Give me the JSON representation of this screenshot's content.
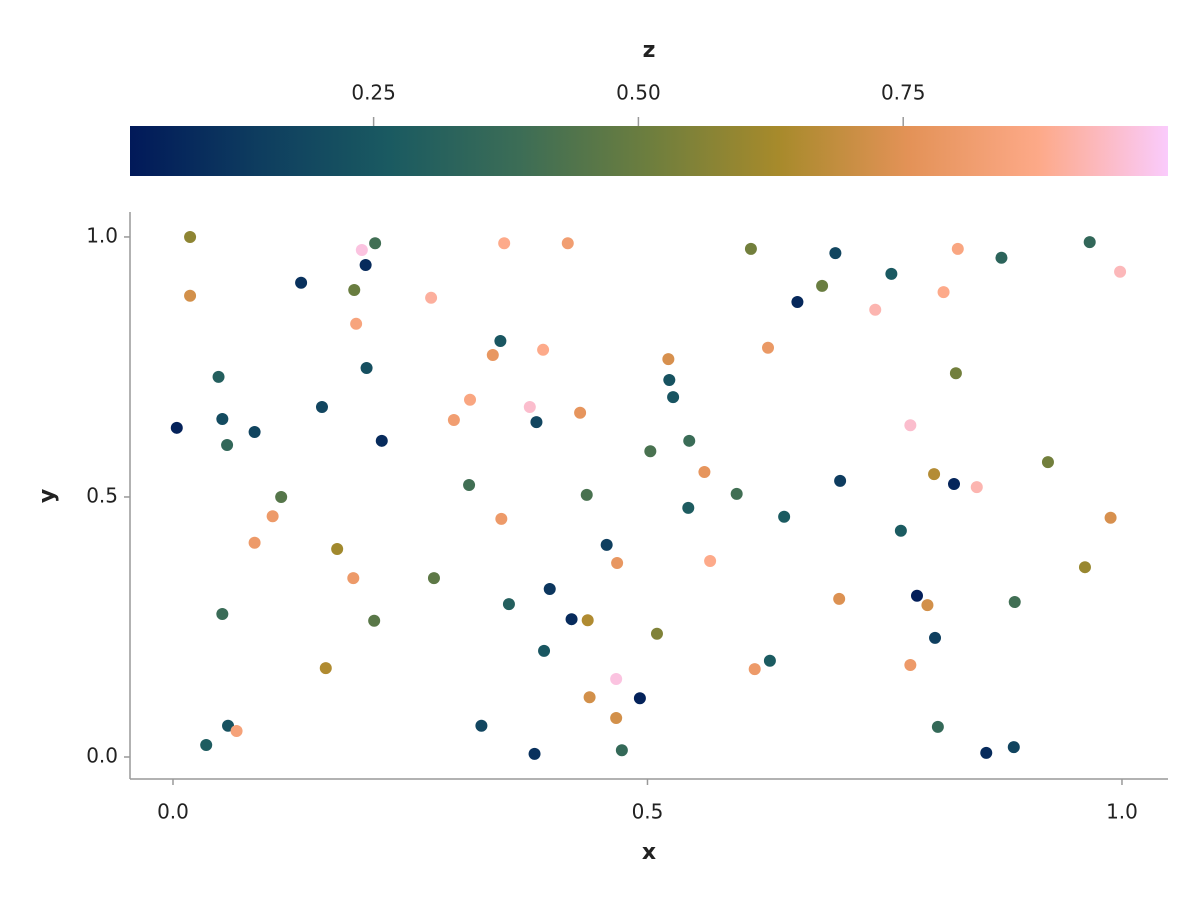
{
  "chart_data": {
    "type": "scatter",
    "xlabel": "x",
    "ylabel": "y",
    "colorbar_label": "z",
    "xlim": [
      -0.0453,
      1.0485
    ],
    "ylim": [
      -0.0423,
      1.048
    ],
    "clim": [
      0.02,
      1.0
    ],
    "xticks": [
      {
        "value": 0,
        "label": "0.0"
      },
      0.5,
      {
        "value": 1,
        "label": "1.0"
      }
    ],
    "yticks": [
      {
        "value": 0,
        "label": "0.0"
      },
      0.5,
      {
        "value": 1,
        "label": "1.0"
      }
    ],
    "cticks": [
      0.25,
      {
        "value": 0.5,
        "label": "0.50"
      },
      0.75
    ],
    "colormap": [
      "#011959",
      "#0e3d5f",
      "#1a5a61",
      "#3c6d56",
      "#6d7e3e",
      "#a78a2b",
      "#e39257",
      "#fda988",
      "#facbfc"
    ],
    "x": [
      0.018,
      0.018,
      0.004,
      0.048,
      0.052,
      0.057,
      0.086,
      0.052,
      0.058,
      0.035,
      0.067,
      0.086,
      0.105,
      0.114,
      0.135,
      0.157,
      0.161,
      0.173,
      0.19,
      0.191,
      0.193,
      0.199,
      0.203,
      0.213,
      0.204,
      0.212,
      0.22,
      0.272,
      0.275,
      0.296,
      0.313,
      0.312,
      0.325,
      0.337,
      0.345,
      0.346,
      0.349,
      0.354,
      0.376,
      0.383,
      0.381,
      0.39,
      0.391,
      0.397,
      0.416,
      0.42,
      0.429,
      0.436,
      0.437,
      0.439,
      0.457,
      0.467,
      0.468,
      0.467,
      0.473,
      0.492,
      0.503,
      0.51,
      0.522,
      0.523,
      0.527,
      0.544,
      0.543,
      0.56,
      0.566,
      0.594,
      0.609,
      0.613,
      0.627,
      0.629,
      0.644,
      0.658,
      0.684,
      0.698,
      0.702,
      0.703,
      0.74,
      0.757,
      0.767,
      0.777,
      0.777,
      0.784,
      0.795,
      0.802,
      0.803,
      0.806,
      0.812,
      0.823,
      0.825,
      0.827,
      0.847,
      0.857,
      0.873,
      0.886,
      0.887,
      0.922,
      0.961,
      0.966,
      0.988,
      0.998
    ],
    "y": [
      1.0,
      0.887,
      0.633,
      0.731,
      0.65,
      0.6,
      0.625,
      0.275,
      0.06,
      0.023,
      0.05,
      0.412,
      0.463,
      0.5,
      0.912,
      0.673,
      0.171,
      0.4,
      0.344,
      0.898,
      0.833,
      0.975,
      0.946,
      0.988,
      0.748,
      0.262,
      0.608,
      0.883,
      0.344,
      0.648,
      0.687,
      0.523,
      0.06,
      0.773,
      0.8,
      0.458,
      0.988,
      0.294,
      0.673,
      0.644,
      0.006,
      0.783,
      0.204,
      0.323,
      0.988,
      0.265,
      0.662,
      0.504,
      0.263,
      0.115,
      0.408,
      0.15,
      0.373,
      0.075,
      0.013,
      0.113,
      0.588,
      0.237,
      0.765,
      0.725,
      0.692,
      0.608,
      0.479,
      0.548,
      0.377,
      0.506,
      0.977,
      0.169,
      0.787,
      0.185,
      0.462,
      0.875,
      0.906,
      0.969,
      0.304,
      0.531,
      0.86,
      0.929,
      0.435,
      0.177,
      0.638,
      0.31,
      0.292,
      0.544,
      0.229,
      0.058,
      0.894,
      0.525,
      0.738,
      0.977,
      0.519,
      0.008,
      0.96,
      0.019,
      0.298,
      0.567,
      0.365,
      0.99,
      0.46,
      0.933
    ],
    "z": [
      0.58,
      0.72,
      0.05,
      0.3,
      0.2,
      0.35,
      0.17,
      0.38,
      0.23,
      0.28,
      0.84,
      0.8,
      0.8,
      0.45,
      0.1,
      0.18,
      0.65,
      0.62,
      0.8,
      0.5,
      0.85,
      0.97,
      0.08,
      0.4,
      0.22,
      0.46,
      0.08,
      0.9,
      0.47,
      0.82,
      0.86,
      0.4,
      0.18,
      0.78,
      0.25,
      0.8,
      0.88,
      0.3,
      0.95,
      0.18,
      0.1,
      0.88,
      0.25,
      0.12,
      0.82,
      0.08,
      0.77,
      0.42,
      0.65,
      0.72,
      0.15,
      0.97,
      0.78,
      0.72,
      0.36,
      0.05,
      0.42,
      0.55,
      0.73,
      0.23,
      0.24,
      0.38,
      0.28,
      0.77,
      0.88,
      0.4,
      0.52,
      0.8,
      0.79,
      0.27,
      0.27,
      0.07,
      0.5,
      0.18,
      0.74,
      0.14,
      0.92,
      0.26,
      0.27,
      0.8,
      0.95,
      0.04,
      0.72,
      0.66,
      0.15,
      0.36,
      0.88,
      0.06,
      0.52,
      0.86,
      0.92,
      0.08,
      0.33,
      0.17,
      0.4,
      0.52,
      0.6,
      0.35,
      0.73,
      0.93
    ]
  }
}
